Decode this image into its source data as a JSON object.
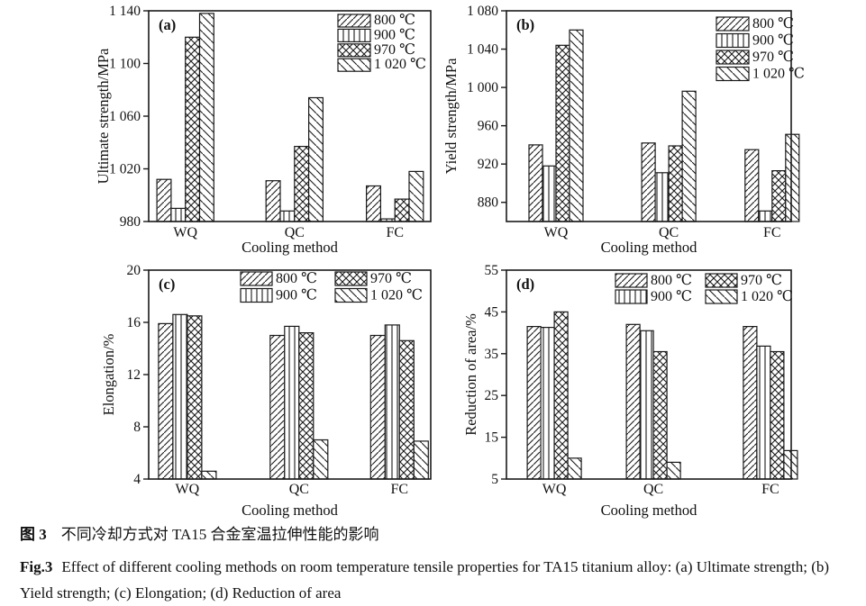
{
  "figure": {
    "background": "#ffffff"
  },
  "colors": {
    "ink": "#1a1a1a",
    "text": "#111111"
  },
  "legend_series": [
    {
      "label": "800 ℃",
      "pattern": "diag"
    },
    {
      "label": "900 ℃",
      "pattern": "vert"
    },
    {
      "label": "970 ℃",
      "pattern": "cross"
    },
    {
      "label": "1 020 ℃",
      "pattern": "bdiag"
    }
  ],
  "chart_data": [
    {
      "type": "bar",
      "panel_label": "(a)",
      "ylabel": "Ultimate strength/MPa",
      "xlabel": "Cooling method",
      "categories": [
        "WQ",
        "QC",
        "FC"
      ],
      "series": [
        {
          "name": "800 ℃",
          "values": [
            1012,
            1011,
            1007
          ]
        },
        {
          "name": "900 ℃",
          "values": [
            990,
            988,
            982
          ]
        },
        {
          "name": "970 ℃",
          "values": [
            1120,
            1037,
            997
          ]
        },
        {
          "name": "1 020 ℃",
          "values": [
            1138,
            1074,
            1018
          ]
        }
      ],
      "ylim": [
        980,
        1140
      ],
      "yticks": [
        980,
        1020,
        1060,
        1100,
        1140
      ],
      "ytick_labels": [
        "980",
        "1 020",
        "1 060",
        "1 100",
        "1 140"
      ],
      "grid": false,
      "legend_position": "top-right",
      "legend_columns": 1
    },
    {
      "type": "bar",
      "panel_label": "(b)",
      "ylabel": "Yield strength/MPa",
      "xlabel": "Cooling method",
      "categories": [
        "WQ",
        "QC",
        "FC"
      ],
      "series": [
        {
          "name": "800 ℃",
          "values": [
            940,
            942,
            935
          ]
        },
        {
          "name": "900 ℃",
          "values": [
            918,
            911,
            871
          ]
        },
        {
          "name": "970 ℃",
          "values": [
            1044,
            939,
            913
          ]
        },
        {
          "name": "1 020 ℃",
          "values": [
            1060,
            996,
            951
          ]
        }
      ],
      "ylim": [
        860,
        1080
      ],
      "yticks": [
        880,
        920,
        960,
        1000,
        1040,
        1080
      ],
      "ytick_labels": [
        "880",
        "920",
        "960",
        "1 000",
        "1 040",
        "1 080"
      ],
      "grid": false,
      "legend_position": "top-right",
      "legend_columns": 1
    },
    {
      "type": "bar",
      "panel_label": "(c)",
      "ylabel": "Elongation/%",
      "xlabel": "Cooling method",
      "categories": [
        "WQ",
        "QC",
        "FC"
      ],
      "series": [
        {
          "name": "800 ℃",
          "values": [
            15.9,
            15.0,
            15.0
          ]
        },
        {
          "name": "900 ℃",
          "values": [
            16.6,
            15.7,
            15.8
          ]
        },
        {
          "name": "970 ℃",
          "values": [
            16.5,
            15.2,
            14.6
          ]
        },
        {
          "name": "1 020 ℃",
          "values": [
            4.6,
            7.0,
            6.9
          ]
        }
      ],
      "ylim": [
        4,
        20
      ],
      "yticks": [
        4,
        8,
        12,
        16,
        20
      ],
      "ytick_labels": [
        "4",
        "8",
        "12",
        "16",
        "20"
      ],
      "grid": false,
      "legend_position": "top-center",
      "legend_columns": 2
    },
    {
      "type": "bar",
      "panel_label": "(d)",
      "ylabel": "Reduction of area/%",
      "xlabel": "Cooling method",
      "categories": [
        "WQ",
        "QC",
        "FC"
      ],
      "series": [
        {
          "name": "800 ℃",
          "values": [
            41.5,
            42.0,
            41.5
          ]
        },
        {
          "name": "900 ℃",
          "values": [
            41.3,
            40.5,
            36.8
          ]
        },
        {
          "name": "970 ℃",
          "values": [
            45.0,
            35.5,
            35.5
          ]
        },
        {
          "name": "1 020 ℃",
          "values": [
            10.0,
            9.0,
            11.8
          ]
        }
      ],
      "ylim": [
        5,
        55
      ],
      "yticks": [
        5,
        15,
        25,
        35,
        45,
        55
      ],
      "ytick_labels": [
        "5",
        "15",
        "25",
        "35",
        "45",
        "55"
      ],
      "grid": false,
      "legend_position": "top-center",
      "legend_columns": 2
    }
  ],
  "caption": {
    "zh_label": "图 3",
    "zh_text": "不同冷却方式对 TA15 合金室温拉伸性能的影响",
    "en_label": "Fig.3",
    "en_text": "Effect of different cooling methods on room temperature tensile properties for TA15 titanium alloy: (a) Ultimate strength; (b) Yield strength; (c) Elongation; (d) Reduction of area"
  }
}
